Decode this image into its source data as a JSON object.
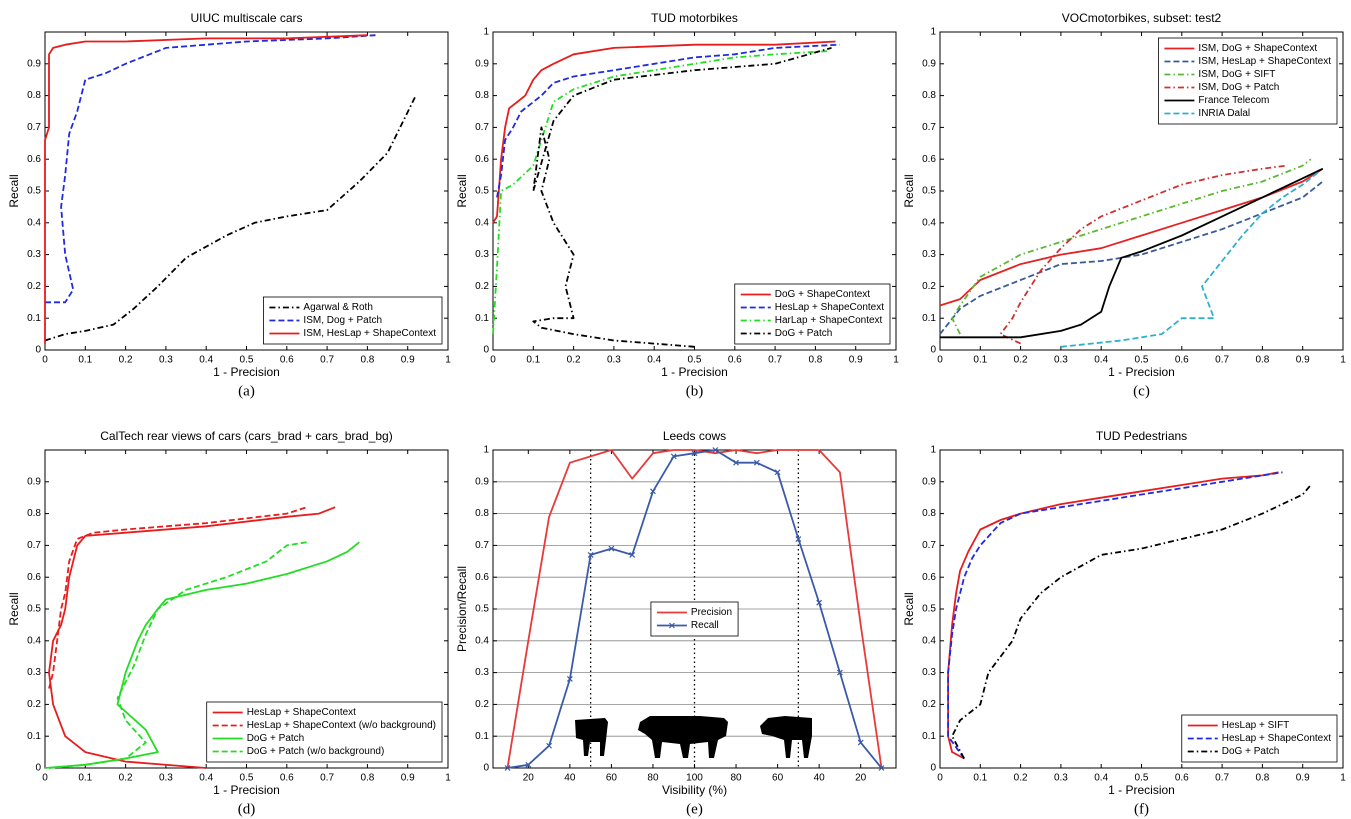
{
  "chart_data": [
    {
      "type": "line",
      "title": "UIUC multiscale cars",
      "xlabel": "1 - Precision",
      "ylabel": "Recall",
      "caption": "(a)",
      "xlim": [
        0,
        1
      ],
      "ylim": [
        0,
        1
      ],
      "xticks": [
        0,
        0.1,
        0.2,
        0.3,
        0.4,
        0.5,
        0.6,
        0.7,
        0.8,
        0.9,
        1
      ],
      "yticks": [
        0,
        0.1,
        0.2,
        0.3,
        0.4,
        0.5,
        0.6,
        0.7,
        0.8,
        0.9
      ],
      "grid": false,
      "legend": "lower right",
      "series": [
        {
          "name": "Agarwal & Roth",
          "color": "#000000",
          "dash": "dashdot",
          "x": [
            0,
            0.05,
            0.1,
            0.17,
            0.22,
            0.28,
            0.35,
            0.45,
            0.52,
            0.6,
            0.7,
            0.78,
            0.85,
            0.92
          ],
          "values": [
            0.03,
            0.05,
            0.06,
            0.08,
            0.13,
            0.2,
            0.29,
            0.36,
            0.4,
            0.42,
            0.44,
            0.53,
            0.62,
            0.8
          ]
        },
        {
          "name": "ISM, Dog + Patch",
          "color": "#1f2be0",
          "dash": "dashed",
          "x": [
            0,
            0.05,
            0.07,
            0.05,
            0.04,
            0.05,
            0.06,
            0.08,
            0.1,
            0.15,
            0.2,
            0.3,
            0.5,
            0.7,
            0.82
          ],
          "values": [
            0.15,
            0.15,
            0.19,
            0.3,
            0.45,
            0.55,
            0.68,
            0.75,
            0.85,
            0.87,
            0.9,
            0.95,
            0.97,
            0.98,
            0.99
          ]
        },
        {
          "name": "ISM, HesLap + ShapeContext",
          "color": "#e81c1c",
          "dash": "solid",
          "x": [
            0,
            0,
            0.01,
            0.01,
            0.02,
            0.05,
            0.1,
            0.2,
            0.4,
            0.6,
            0.8
          ],
          "values": [
            0.02,
            0.66,
            0.7,
            0.93,
            0.95,
            0.96,
            0.97,
            0.97,
            0.98,
            0.98,
            0.99
          ]
        }
      ]
    },
    {
      "type": "line",
      "title": "TUD motorbikes",
      "xlabel": "1 - Precision",
      "ylabel": "Recall",
      "caption": "(b)",
      "xlim": [
        0,
        1
      ],
      "ylim": [
        0,
        1
      ],
      "xticks": [
        0,
        0.1,
        0.2,
        0.3,
        0.4,
        0.5,
        0.6,
        0.7,
        0.8,
        0.9,
        1
      ],
      "yticks": [
        0,
        0.1,
        0.2,
        0.3,
        0.4,
        0.5,
        0.6,
        0.7,
        0.8,
        0.9,
        1
      ],
      "grid": false,
      "legend": "lower right",
      "series": [
        {
          "name": "DoG + ShapeContext",
          "color": "#e81c1c",
          "dash": "solid",
          "x": [
            0,
            0.01,
            0.02,
            0.03,
            0.04,
            0.06,
            0.08,
            0.1,
            0.12,
            0.15,
            0.2,
            0.3,
            0.5,
            0.7,
            0.85
          ],
          "values": [
            0.4,
            0.42,
            0.6,
            0.7,
            0.76,
            0.78,
            0.8,
            0.85,
            0.88,
            0.9,
            0.93,
            0.95,
            0.96,
            0.96,
            0.97
          ]
        },
        {
          "name": "HesLap + ShapeContext",
          "color": "#1f2be0",
          "dash": "dashed",
          "x": [
            0.01,
            0.02,
            0.03,
            0.05,
            0.07,
            0.1,
            0.12,
            0.15,
            0.2,
            0.3,
            0.4,
            0.5,
            0.6,
            0.7,
            0.86
          ],
          "values": [
            0.48,
            0.55,
            0.66,
            0.7,
            0.75,
            0.78,
            0.8,
            0.84,
            0.86,
            0.88,
            0.9,
            0.92,
            0.93,
            0.95,
            0.96
          ]
        },
        {
          "name": "HarLap + ShapeContext",
          "color": "#22dd22",
          "dash": "dashdot",
          "x": [
            0,
            0.01,
            0.02,
            0.05,
            0.1,
            0.13,
            0.15,
            0.2,
            0.25,
            0.3,
            0.4,
            0.5,
            0.6,
            0.7,
            0.83
          ],
          "values": [
            0.05,
            0.26,
            0.5,
            0.52,
            0.58,
            0.7,
            0.78,
            0.82,
            0.84,
            0.86,
            0.88,
            0.9,
            0.92,
            0.93,
            0.94
          ]
        },
        {
          "name": "DoG + Patch",
          "color": "#000000",
          "dash": "dashdot",
          "x": [
            0.5,
            0.4,
            0.3,
            0.2,
            0.12,
            0.1,
            0.15,
            0.2,
            0.18,
            0.2,
            0.15,
            0.12,
            0.14,
            0.12,
            0.1,
            0.15,
            0.2,
            0.3,
            0.5,
            0.7,
            0.84
          ],
          "values": [
            0.01,
            0.02,
            0.03,
            0.05,
            0.07,
            0.09,
            0.1,
            0.1,
            0.2,
            0.3,
            0.4,
            0.5,
            0.6,
            0.7,
            0.5,
            0.72,
            0.8,
            0.85,
            0.88,
            0.9,
            0.95
          ]
        }
      ]
    },
    {
      "type": "line",
      "title": "VOCmotorbikes, subset: test2",
      "xlabel": "1 - Precision",
      "ylabel": "Recall",
      "caption": "(c)",
      "xlim": [
        0,
        1
      ],
      "ylim": [
        0,
        1
      ],
      "xticks": [
        0,
        0.1,
        0.2,
        0.3,
        0.4,
        0.5,
        0.6,
        0.7,
        0.8,
        0.9,
        1
      ],
      "yticks": [
        0,
        0.1,
        0.2,
        0.3,
        0.4,
        0.5,
        0.6,
        0.7,
        0.8,
        0.9,
        1
      ],
      "grid": false,
      "legend": "upper right",
      "series": [
        {
          "name": "ISM, DoG + ShapeContext",
          "color": "#e52222",
          "dash": "solid",
          "x": [
            0,
            0.05,
            0.1,
            0.2,
            0.3,
            0.4,
            0.5,
            0.6,
            0.7,
            0.8,
            0.9,
            0.95
          ],
          "values": [
            0.14,
            0.16,
            0.22,
            0.27,
            0.3,
            0.32,
            0.36,
            0.4,
            0.44,
            0.48,
            0.53,
            0.57
          ]
        },
        {
          "name": "ISM, HesLap + ShapeContext",
          "color": "#3a5a9a",
          "dash": "dashed",
          "x": [
            0,
            0.05,
            0.1,
            0.2,
            0.3,
            0.4,
            0.5,
            0.6,
            0.7,
            0.8,
            0.9,
            0.95
          ],
          "values": [
            0.05,
            0.13,
            0.17,
            0.22,
            0.27,
            0.28,
            0.3,
            0.34,
            0.38,
            0.43,
            0.48,
            0.53
          ]
        },
        {
          "name": "ISM, DoG + SIFT",
          "color": "#5cb832",
          "dash": "dashdot",
          "x": [
            0.05,
            0.03,
            0.05,
            0.1,
            0.2,
            0.3,
            0.4,
            0.5,
            0.6,
            0.7,
            0.8,
            0.9,
            0.92
          ],
          "values": [
            0.05,
            0.1,
            0.14,
            0.23,
            0.3,
            0.34,
            0.38,
            0.42,
            0.46,
            0.5,
            0.53,
            0.58,
            0.6
          ]
        },
        {
          "name": "ISM, DoG + Patch",
          "color": "#d03030",
          "dash": "dashdot",
          "x": [
            0.2,
            0.15,
            0.18,
            0.2,
            0.25,
            0.3,
            0.35,
            0.4,
            0.5,
            0.6,
            0.7,
            0.8,
            0.86
          ],
          "values": [
            0.02,
            0.05,
            0.1,
            0.15,
            0.25,
            0.32,
            0.38,
            0.42,
            0.47,
            0.52,
            0.55,
            0.57,
            0.58
          ]
        },
        {
          "name": "France Telecom",
          "color": "#000000",
          "dash": "solid",
          "x": [
            0,
            0.2,
            0.3,
            0.35,
            0.4,
            0.42,
            0.45,
            0.5,
            0.6,
            0.7,
            0.8,
            0.9,
            0.95
          ],
          "values": [
            0.04,
            0.04,
            0.06,
            0.08,
            0.12,
            0.2,
            0.29,
            0.31,
            0.36,
            0.42,
            0.48,
            0.54,
            0.57
          ]
        },
        {
          "name": "INRIA Dalal",
          "color": "#30b0d0",
          "dash": "dashed",
          "x": [
            0.3,
            0.45,
            0.55,
            0.6,
            0.68,
            0.65,
            0.7,
            0.75,
            0.8,
            0.85,
            0.9,
            0.94
          ],
          "values": [
            0.01,
            0.03,
            0.05,
            0.1,
            0.1,
            0.2,
            0.28,
            0.36,
            0.43,
            0.48,
            0.52,
            0.56
          ]
        }
      ]
    },
    {
      "type": "line",
      "title": "CalTech rear views of cars (cars_brad + cars_brad_bg)",
      "xlabel": "1 - Precision",
      "ylabel": "Recall",
      "caption": "(d)",
      "xlim": [
        0,
        1
      ],
      "ylim": [
        0,
        1
      ],
      "xticks": [
        0,
        0.1,
        0.2,
        0.3,
        0.4,
        0.5,
        0.6,
        0.7,
        0.8,
        0.9,
        1
      ],
      "yticks": [
        0,
        0.1,
        0.2,
        0.3,
        0.4,
        0.5,
        0.6,
        0.7,
        0.8,
        0.9
      ],
      "grid": false,
      "legend": "lower right",
      "series": [
        {
          "name": "HesLap + ShapeContext",
          "color": "#e81c1c",
          "dash": "solid",
          "x": [
            0.4,
            0.2,
            0.1,
            0.05,
            0.02,
            0.01,
            0.02,
            0.04,
            0.05,
            0.06,
            0.07,
            0.08,
            0.1,
            0.2,
            0.4,
            0.6,
            0.68,
            0.72
          ],
          "values": [
            0,
            0.02,
            0.05,
            0.1,
            0.2,
            0.3,
            0.4,
            0.45,
            0.5,
            0.6,
            0.65,
            0.7,
            0.73,
            0.74,
            0.76,
            0.79,
            0.8,
            0.82
          ]
        },
        {
          "name": "HesLap + ShapeContext (w/o background)",
          "color": "#e81c1c",
          "dash": "dashed",
          "x": [
            0.01,
            0.02,
            0.03,
            0.04,
            0.05,
            0.06,
            0.08,
            0.12,
            0.2,
            0.4,
            0.6,
            0.65
          ],
          "values": [
            0.25,
            0.3,
            0.4,
            0.5,
            0.55,
            0.65,
            0.72,
            0.74,
            0.75,
            0.77,
            0.8,
            0.82
          ]
        },
        {
          "name": "DoG + Patch",
          "color": "#22dd22",
          "dash": "solid",
          "x": [
            0,
            0.1,
            0.2,
            0.28,
            0.25,
            0.18,
            0.2,
            0.23,
            0.25,
            0.28,
            0.3,
            0.4,
            0.5,
            0.6,
            0.7,
            0.75,
            0.78
          ],
          "values": [
            0,
            0.01,
            0.03,
            0.05,
            0.12,
            0.2,
            0.3,
            0.4,
            0.45,
            0.5,
            0.53,
            0.56,
            0.58,
            0.61,
            0.65,
            0.68,
            0.71
          ]
        },
        {
          "name": "DoG + Patch (w/o background)",
          "color": "#22dd22",
          "dash": "dashed",
          "x": [
            0.01,
            0.1,
            0.2,
            0.25,
            0.2,
            0.18,
            0.22,
            0.25,
            0.28,
            0.35,
            0.45,
            0.55,
            0.6,
            0.65
          ],
          "values": [
            0,
            0.01,
            0.03,
            0.08,
            0.15,
            0.22,
            0.32,
            0.42,
            0.5,
            0.56,
            0.6,
            0.65,
            0.7,
            0.71
          ]
        }
      ]
    },
    {
      "type": "line",
      "title": "Leeds cows",
      "xlabel": "Visibility (%)",
      "ylabel": "Precision/Recall",
      "caption": "(e)",
      "xlim": [
        3,
        197
      ],
      "ylim": [
        0,
        1
      ],
      "xticks": [
        20,
        40,
        60,
        80,
        100,
        {
          "value": 120,
          "label": "80"
        },
        {
          "value": 140,
          "label": "60"
        },
        {
          "value": 160,
          "label": "40"
        },
        {
          "value": 180,
          "label": "20"
        }
      ],
      "yticks": [
        0,
        0.1,
        0.2,
        0.3,
        0.4,
        0.5,
        0.6,
        0.7,
        0.8,
        0.9,
        1
      ],
      "grid": true,
      "legend": "center",
      "vlines": [
        50,
        100,
        150
      ],
      "x": [
        10,
        20,
        30,
        40,
        50,
        60,
        70,
        80,
        90,
        100,
        110,
        120,
        130,
        140,
        150,
        160,
        170,
        180,
        190
      ],
      "series": [
        {
          "name": "Precision",
          "color": "#e83a3a",
          "dash": "solid",
          "values": [
            0,
            0.4,
            0.79,
            0.96,
            0.98,
            1.0,
            0.91,
            0.99,
            1.0,
            1.0,
            0.99,
            1.0,
            0.99,
            1.0,
            1.0,
            1.0,
            0.93,
            0.45,
            0
          ]
        },
        {
          "name": "Recall",
          "color": "#3a5aaa",
          "dash": "solid",
          "marker": "x",
          "values": [
            0,
            0.01,
            0.07,
            0.28,
            0.67,
            0.69,
            0.67,
            0.87,
            0.98,
            0.99,
            1.0,
            0.96,
            0.96,
            0.93,
            0.72,
            0.52,
            0.3,
            0.08,
            0
          ]
        }
      ]
    },
    {
      "type": "line",
      "title": "TUD Pedestrians",
      "xlabel": "1 - Precision",
      "ylabel": "Recall",
      "caption": "(f)",
      "xlim": [
        0,
        1
      ],
      "ylim": [
        0,
        1
      ],
      "xticks": [
        0,
        0.1,
        0.2,
        0.3,
        0.4,
        0.5,
        0.6,
        0.7,
        0.8,
        0.9,
        1
      ],
      "yticks": [
        0,
        0.1,
        0.2,
        0.3,
        0.4,
        0.5,
        0.6,
        0.7,
        0.8,
        0.9,
        1
      ],
      "grid": false,
      "legend": "lower right",
      "series": [
        {
          "name": "HesLap + SIFT",
          "color": "#e81c1c",
          "dash": "solid",
          "x": [
            0.06,
            0.03,
            0.02,
            0.02,
            0.03,
            0.04,
            0.05,
            0.07,
            0.1,
            0.15,
            0.2,
            0.3,
            0.4,
            0.5,
            0.6,
            0.7,
            0.8,
            0.84
          ],
          "values": [
            0.03,
            0.05,
            0.1,
            0.3,
            0.45,
            0.55,
            0.62,
            0.68,
            0.75,
            0.78,
            0.8,
            0.83,
            0.85,
            0.87,
            0.89,
            0.91,
            0.92,
            0.93
          ]
        },
        {
          "name": "HesLap + ShapeContext",
          "color": "#1f2be0",
          "dash": "dashed",
          "x": [
            0.06,
            0.02,
            0.02,
            0.03,
            0.04,
            0.06,
            0.08,
            0.1,
            0.15,
            0.2,
            0.3,
            0.4,
            0.5,
            0.6,
            0.7,
            0.8,
            0.85
          ],
          "values": [
            0.03,
            0.1,
            0.3,
            0.42,
            0.5,
            0.6,
            0.66,
            0.7,
            0.77,
            0.8,
            0.82,
            0.84,
            0.86,
            0.88,
            0.9,
            0.92,
            0.93
          ]
        },
        {
          "name": "DoG + Patch",
          "color": "#000000",
          "dash": "dashdot",
          "x": [
            0.06,
            0.03,
            0.05,
            0.1,
            0.12,
            0.15,
            0.18,
            0.2,
            0.25,
            0.3,
            0.4,
            0.5,
            0.6,
            0.7,
            0.8,
            0.9,
            0.92
          ],
          "values": [
            0.03,
            0.1,
            0.15,
            0.2,
            0.3,
            0.35,
            0.4,
            0.47,
            0.55,
            0.6,
            0.67,
            0.69,
            0.72,
            0.75,
            0.8,
            0.86,
            0.89
          ]
        }
      ]
    }
  ]
}
